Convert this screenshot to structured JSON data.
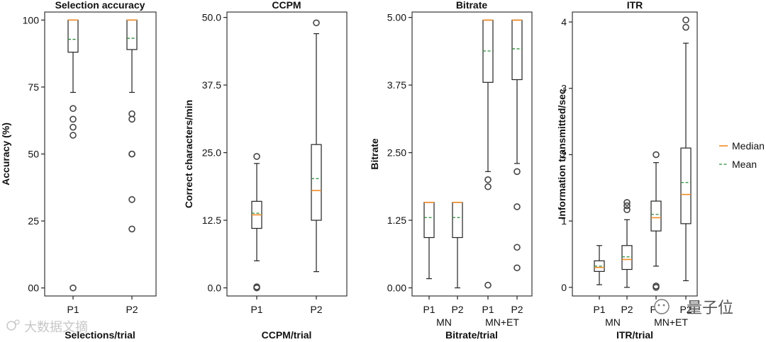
{
  "legend": {
    "median_label": "Median",
    "mean_label": "Mean",
    "median_color": "#f08a24",
    "mean_color": "#2e8b3a"
  },
  "watermarks": {
    "left": "大数据文摘",
    "right": "量子位"
  },
  "chart_data": [
    {
      "type": "box",
      "title": "Selection accuracy",
      "xlabel": "Selections/trial",
      "ylabel": "Accuracy (%)",
      "ylim": [
        -3,
        103
      ],
      "yticks": [
        0,
        25,
        50,
        75,
        100
      ],
      "yticklabels": [
        "00",
        "25",
        "50",
        "75",
        "100"
      ],
      "categories": [
        "P1",
        "P2"
      ],
      "groups": [],
      "boxes": [
        {
          "q1": 88,
          "median": 100,
          "q3": 100,
          "whislo": 73,
          "whishi": 100,
          "mean": 92.8,
          "fliers": [
            67,
            63,
            60,
            57,
            0
          ]
        },
        {
          "q1": 89,
          "median": 100,
          "q3": 100,
          "whislo": 73,
          "whishi": 100,
          "mean": 93.2,
          "fliers": [
            65,
            63,
            50,
            50,
            33,
            22
          ]
        }
      ]
    },
    {
      "type": "box",
      "title": "CCPM",
      "xlabel": "CCPM/trial",
      "ylabel": "Correct characters/min",
      "ylim": [
        -1.5,
        51
      ],
      "yticks": [
        0,
        12.5,
        25,
        37.5,
        50
      ],
      "yticklabels": [
        "0.0",
        "12.5",
        "25.0",
        "37.5",
        "50.0"
      ],
      "categories": [
        "P1",
        "P2"
      ],
      "groups": [],
      "boxes": [
        {
          "q1": 11,
          "median": 13.5,
          "q3": 16,
          "whislo": 5,
          "whishi": 23,
          "mean": 13.8,
          "fliers": [
            24.3,
            0,
            0.2
          ]
        },
        {
          "q1": 12.5,
          "median": 18,
          "q3": 26.5,
          "whislo": 3,
          "whishi": 47,
          "mean": 20.2,
          "fliers": [
            49
          ]
        }
      ]
    },
    {
      "type": "box",
      "title": "Bitrate",
      "xlabel": "Bitrate/trial",
      "ylabel": "Bitrate",
      "ylim": [
        -0.15,
        5.1
      ],
      "yticks": [
        0,
        1.25,
        2.5,
        3.75,
        5
      ],
      "yticklabels": [
        "0.00",
        "1.25",
        "2.50",
        "3.75",
        "5.00"
      ],
      "categories": [
        "P1",
        "P2",
        "P1",
        "P2"
      ],
      "groups": [
        "MN",
        "MN+ET"
      ],
      "boxes": [
        {
          "q1": 0.93,
          "median": 1.58,
          "q3": 1.58,
          "whislo": 0.17,
          "whishi": 1.58,
          "mean": 1.3,
          "fliers": []
        },
        {
          "q1": 0.93,
          "median": 1.58,
          "q3": 1.58,
          "whislo": 0,
          "whishi": 1.58,
          "mean": 1.3,
          "fliers": []
        },
        {
          "q1": 3.8,
          "median": 4.95,
          "q3": 4.95,
          "whislo": 2.15,
          "whishi": 4.95,
          "mean": 4.38,
          "fliers": [
            2.0,
            1.87,
            0.05
          ]
        },
        {
          "q1": 3.85,
          "median": 4.95,
          "q3": 4.95,
          "whislo": 2.3,
          "whishi": 4.95,
          "mean": 4.42,
          "fliers": [
            2.15,
            1.5,
            0.75,
            0.37
          ]
        }
      ]
    },
    {
      "type": "box",
      "title": "ITR",
      "xlabel": "ITR/trial",
      "ylabel": "Information transmitted/sec",
      "ylim": [
        -0.13,
        4.15
      ],
      "yticks": [
        0,
        1,
        2,
        3,
        4
      ],
      "yticklabels": [
        "0",
        "1",
        "2",
        "3",
        "4"
      ],
      "categories": [
        "P1",
        "P2",
        "P1",
        "P2"
      ],
      "groups": [
        "MN",
        "MN+ET"
      ],
      "boxes": [
        {
          "q1": 0.24,
          "median": 0.3,
          "q3": 0.4,
          "whislo": 0.04,
          "whishi": 0.63,
          "mean": 0.32,
          "fliers": []
        },
        {
          "q1": 0.27,
          "median": 0.42,
          "q3": 0.63,
          "whislo": 0,
          "whishi": 1.02,
          "mean": 0.46,
          "fliers": [
            1.28,
            1.23,
            1.17
          ]
        },
        {
          "q1": 0.85,
          "median": 1.05,
          "q3": 1.3,
          "whislo": 0.32,
          "whishi": 1.88,
          "mean": 1.1,
          "fliers": [
            2.0,
            0.02,
            0
          ]
        },
        {
          "q1": 0.96,
          "median": 1.4,
          "q3": 2.1,
          "whislo": 0.1,
          "whishi": 3.68,
          "mean": 1.58,
          "fliers": [
            4.03,
            3.92
          ]
        }
      ]
    }
  ]
}
